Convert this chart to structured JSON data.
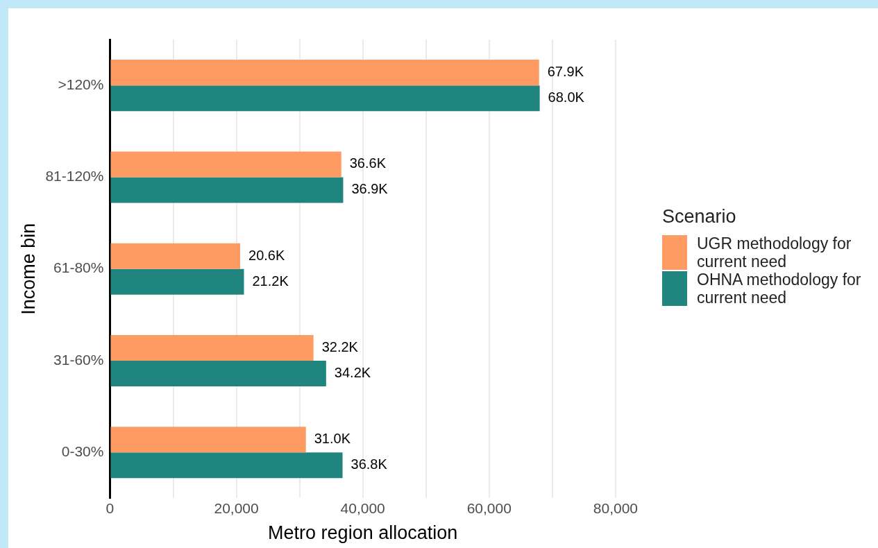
{
  "chart_data": {
    "type": "bar",
    "orientation": "horizontal",
    "xlabel": "Metro region allocation",
    "ylabel": "Income bin",
    "legend_title": "Scenario",
    "legend": "right",
    "grid": "x",
    "categories": [
      ">120%",
      "81-120%",
      "61-80%",
      "31-60%",
      "0-30%"
    ],
    "series": [
      {
        "name": "UGR methodology for current need",
        "color": "#fd9b63",
        "values": [
          67900,
          36600,
          20600,
          32200,
          31000
        ],
        "value_labels": [
          "67.9K",
          "36.6K",
          "20.6K",
          "32.2K",
          "31.0K"
        ]
      },
      {
        "name": "OHNA methodology for current need",
        "color": "#21857f",
        "values": [
          68000,
          36900,
          21200,
          34200,
          36800
        ],
        "value_labels": [
          "68.0K",
          "36.9K",
          "21.2K",
          "34.2K",
          "36.8K"
        ]
      }
    ],
    "xlim": [
      0,
      80000
    ],
    "xticks": [
      0,
      {
        "value": 10000,
        "label": null
      },
      {
        "value": 20000,
        "label": "20,000"
      },
      {
        "value": 30000,
        "label": null
      },
      {
        "value": 40000,
        "label": "40,000"
      },
      {
        "value": 50000,
        "label": null
      },
      {
        "value": 60000,
        "label": "60,000"
      },
      {
        "value": 70000,
        "label": null
      },
      {
        "value": 80000,
        "label": "80,000"
      }
    ]
  }
}
